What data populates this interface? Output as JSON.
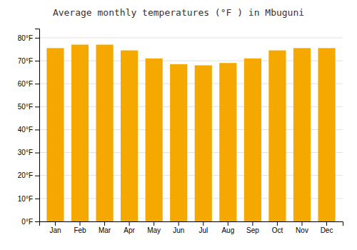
{
  "chart_data": {
    "type": "bar",
    "title": "Average monthly temperatures (°F ) in Mbuguni",
    "categories": [
      "Jan",
      "Feb",
      "Mar",
      "Apr",
      "May",
      "Jun",
      "Jul",
      "Aug",
      "Sep",
      "Oct",
      "Nov",
      "Dec"
    ],
    "values": [
      75.5,
      77.0,
      77.0,
      74.5,
      71.0,
      68.5,
      68.0,
      69.0,
      71.0,
      74.5,
      75.5,
      75.5
    ],
    "color": "#F5A800",
    "ylim": [
      0,
      84
    ],
    "yticks": [
      {
        "value": 0,
        "label": "0°F"
      },
      {
        "value": 10,
        "label": "10°F"
      },
      {
        "value": 20,
        "label": "20°F"
      },
      {
        "value": 30,
        "label": "30°F"
      },
      {
        "value": 40,
        "label": "40°F"
      },
      {
        "value": 50,
        "label": "50°F"
      },
      {
        "value": 60,
        "label": "60°F"
      },
      {
        "value": 70,
        "label": "70°F"
      },
      {
        "value": 80,
        "label": "80°F"
      }
    ],
    "grid": true
  }
}
